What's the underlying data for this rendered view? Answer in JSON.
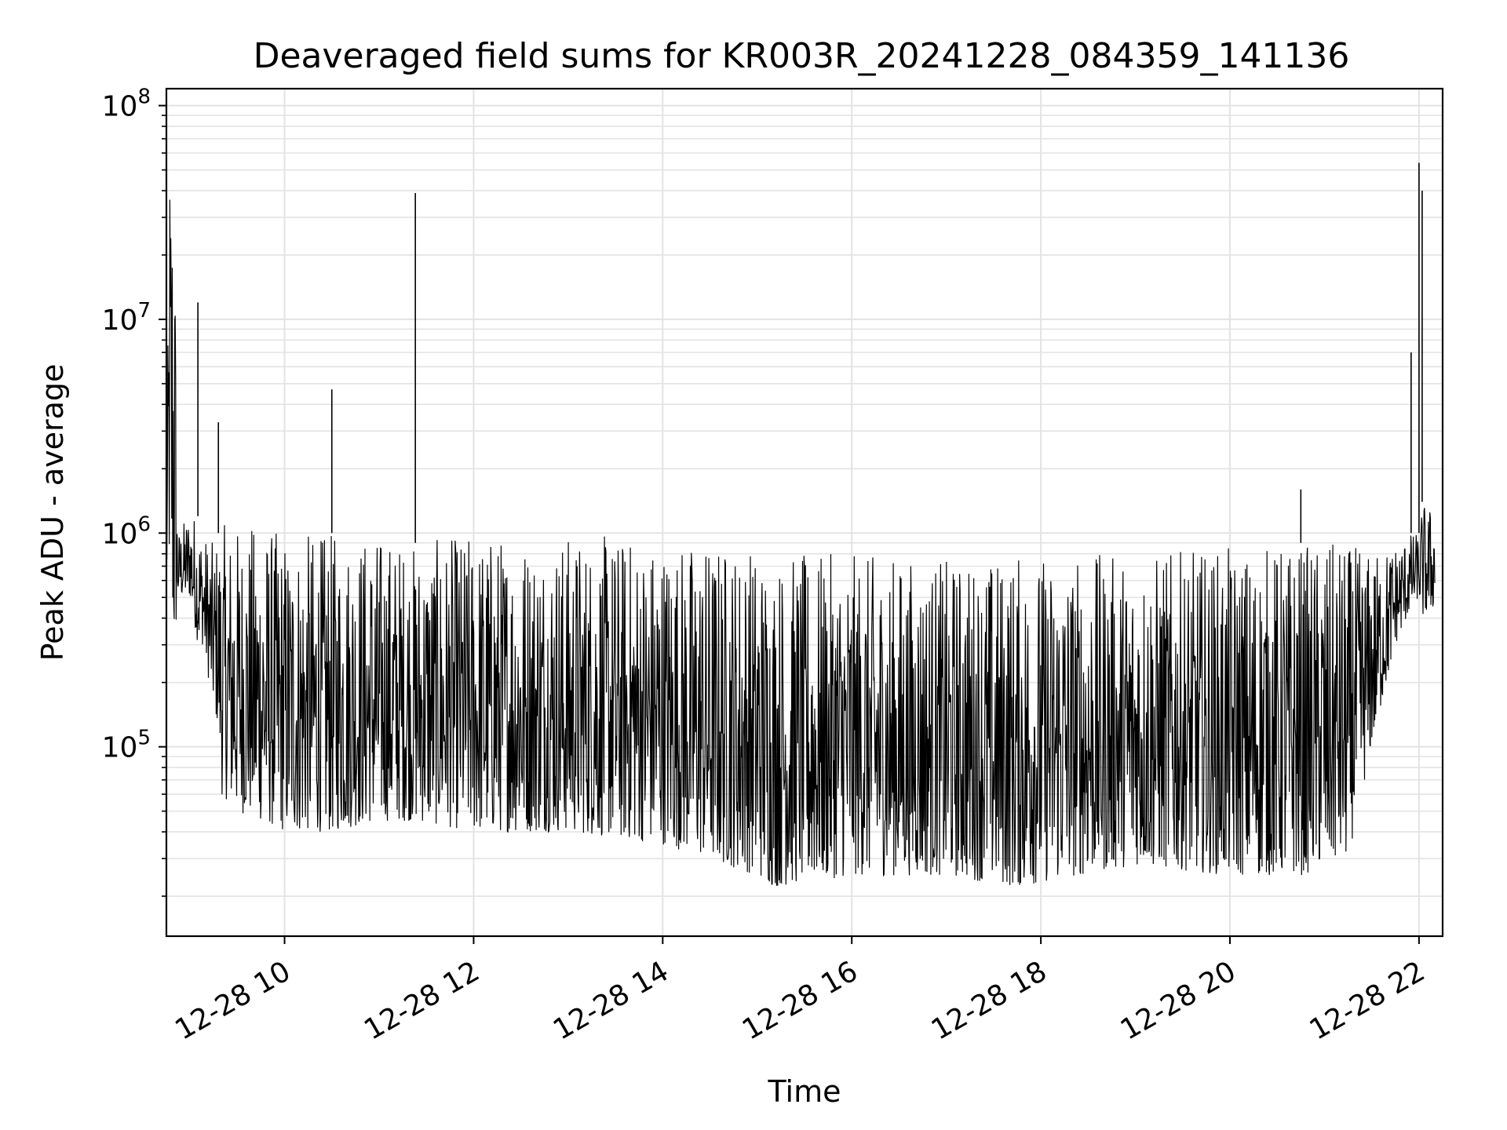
{
  "chart_data": {
    "type": "line",
    "title": "Deaveraged field sums for KR003R_20241228_084359_141136",
    "xlabel": "Time",
    "ylabel": "Peak ADU - average",
    "x_axis": {
      "kind": "time",
      "range": [
        "2024-12-28 08:45",
        "2024-12-28 22:15"
      ],
      "ticks": [
        "2024-12-28 10:00",
        "2024-12-28 12:00",
        "2024-12-28 14:00",
        "2024-12-28 16:00",
        "2024-12-28 18:00",
        "2024-12-28 20:00",
        "2024-12-28 22:00"
      ],
      "tick_labels": [
        "12-28 10",
        "12-28 12",
        "12-28 14",
        "12-28 16",
        "12-28 18",
        "12-28 20",
        "12-28 22"
      ],
      "tick_rotation_deg": 30
    },
    "y_axis": {
      "scale": "log",
      "range": [
        13000,
        120000000
      ],
      "major_ticks": [
        100000,
        1000000,
        10000000,
        100000000
      ],
      "tick_labels": [
        {
          "base": "10",
          "exp": "5"
        },
        {
          "base": "10",
          "exp": "6"
        },
        {
          "base": "10",
          "exp": "7"
        },
        {
          "base": "10",
          "exp": "8"
        }
      ]
    },
    "grid": true,
    "line_color": "#000000",
    "grid_color": "#e3e3e3",
    "series": [
      {
        "x": [
          "2024-12-28 08:45",
          "2024-12-28 08:47",
          "2024-12-28 08:50",
          "2024-12-28 08:52",
          "2024-12-28 08:55",
          "2024-12-28 09:00",
          "2024-12-28 09:05",
          "2024-12-28 09:08",
          "2024-12-28 09:15",
          "2024-12-28 09:18",
          "2024-12-28 09:20",
          "2024-12-28 09:30",
          "2024-12-28 09:45",
          "2024-12-28 10:00",
          "2024-12-28 10:30",
          "2024-12-28 11:00",
          "2024-12-28 11:23",
          "2024-12-28 12:00",
          "2024-12-28 13:00",
          "2024-12-28 14:00",
          "2024-12-28 15:00",
          "2024-12-28 15:10",
          "2024-12-28 16:00",
          "2024-12-28 17:00",
          "2024-12-28 17:45",
          "2024-12-28 19:00",
          "2024-12-28 20:00",
          "2024-12-28 20:45",
          "2024-12-28 21:15",
          "2024-12-28 21:30",
          "2024-12-28 21:45",
          "2024-12-28 21:55",
          "2024-12-28 22:00",
          "2024-12-28 22:02",
          "2024-12-28 22:10"
        ],
        "y": [
          1000000,
          75000000,
          80000000,
          600000,
          800000,
          1000000,
          12000000,
          600000,
          700000,
          3300000,
          300000,
          150000,
          120000,
          130000,
          4700000,
          120000,
          39000000,
          110000,
          120000,
          100000,
          60000,
          50000,
          55000,
          50000,
          45000,
          50000,
          48000,
          1600000,
          50000,
          200000,
          500000,
          7000000,
          54000000,
          40000000,
          700000
        ],
        "envelope_low": [
          600000,
          600000,
          200000,
          500000,
          500000,
          500000,
          300000,
          300000,
          150000,
          120000,
          60000,
          50000,
          45000,
          40000,
          40000,
          45000,
          45000,
          40000,
          40000,
          35000,
          25000,
          22000,
          25000,
          25000,
          22000,
          28000,
          25000,
          25000,
          30000,
          100000,
          300000,
          450000,
          500000,
          400000,
          450000
        ],
        "envelope_high": [
          1000000,
          80000000,
          80000000,
          1000000,
          1100000,
          1300000,
          1200000,
          1000000,
          900000,
          1000000,
          1100000,
          1100000,
          1100000,
          1000000,
          1000000,
          1000000,
          900000,
          1000000,
          1000000,
          950000,
          900000,
          800000,
          800000,
          750000,
          800000,
          800000,
          850000,
          900000,
          900000,
          800000,
          900000,
          1000000,
          1000000,
          1400000,
          1300000
        ]
      }
    ]
  }
}
